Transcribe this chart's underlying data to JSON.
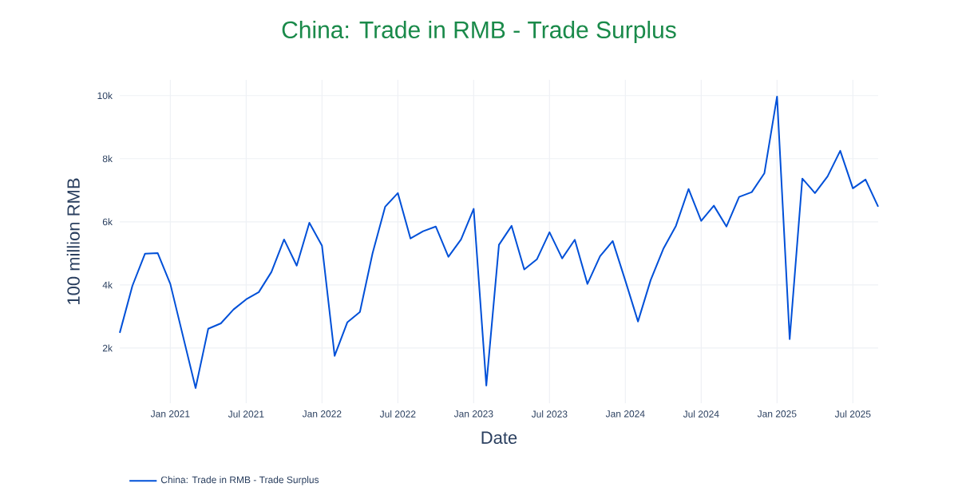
{
  "chart_data": {
    "type": "line",
    "title": "China: Trade in RMB - Trade Surplus",
    "xlabel": "Date",
    "ylabel": "100 million RMB",
    "x": [
      "2020-09",
      "2020-10",
      "2020-11",
      "2020-12",
      "2021-01",
      "2021-02",
      "2021-03",
      "2021-04",
      "2021-05",
      "2021-06",
      "2021-07",
      "2021-08",
      "2021-09",
      "2021-10",
      "2021-11",
      "2021-12",
      "2022-01",
      "2022-02",
      "2022-03",
      "2022-04",
      "2022-05",
      "2022-06",
      "2022-07",
      "2022-08",
      "2022-09",
      "2022-10",
      "2022-11",
      "2022-12",
      "2023-01",
      "2023-02",
      "2023-03",
      "2023-04",
      "2023-05",
      "2023-06",
      "2023-07",
      "2023-08",
      "2023-09",
      "2023-10",
      "2023-11",
      "2023-12",
      "2024-01",
      "2024-02",
      "2024-03",
      "2024-04",
      "2024-05",
      "2024-06",
      "2024-07",
      "2024-08",
      "2024-09",
      "2024-10",
      "2024-11",
      "2024-12",
      "2025-01",
      "2025-02",
      "2025-03",
      "2025-04",
      "2025-05",
      "2025-06",
      "2025-07",
      "2025-08",
      "2025-09"
    ],
    "series": [
      {
        "name": "China: Trade in RMB - Trade Surplus",
        "color": "#0050d8",
        "values": [
          2480,
          3970,
          4990,
          5010,
          4030,
          2380,
          730,
          2610,
          2780,
          3220,
          3540,
          3770,
          4410,
          5440,
          4610,
          5970,
          5240,
          1750,
          2810,
          3140,
          5000,
          6480,
          6910,
          5470,
          5700,
          5850,
          4890,
          5440,
          6410,
          810,
          5270,
          5870,
          4490,
          4810,
          5670,
          4840,
          5430,
          4030,
          4910,
          5390,
          4130,
          2840,
          4150,
          5140,
          5870,
          7040,
          6030,
          6510,
          5850,
          6790,
          6940,
          7540,
          9970,
          2280,
          7370,
          6910,
          7440,
          8250,
          7060,
          7340,
          6480
        ]
      }
    ],
    "xlim": [
      "2020-09",
      "2025-09"
    ],
    "xticks": [
      {
        "value": "2021-01",
        "label": "Jan 2021"
      },
      {
        "value": "2021-07",
        "label": "Jul 2021"
      },
      {
        "value": "2022-01",
        "label": "Jan 2022"
      },
      {
        "value": "2022-07",
        "label": "Jul 2022"
      },
      {
        "value": "2023-01",
        "label": "Jan 2023"
      },
      {
        "value": "2023-07",
        "label": "Jul 2023"
      },
      {
        "value": "2024-01",
        "label": "Jan 2024"
      },
      {
        "value": "2024-07",
        "label": "Jul 2024"
      },
      {
        "value": "2025-01",
        "label": "Jan 2025"
      },
      {
        "value": "2025-07",
        "label": "Jul 2025"
      }
    ],
    "ylim": [
      250,
      10500
    ],
    "yticks": [
      {
        "value": 2000,
        "label": "2k"
      },
      {
        "value": 4000,
        "label": "4k"
      },
      {
        "value": 6000,
        "label": "6k"
      },
      {
        "value": 8000,
        "label": "8k"
      },
      {
        "value": 10000,
        "label": "10k"
      }
    ],
    "grid": true,
    "legend": "bottom left"
  }
}
